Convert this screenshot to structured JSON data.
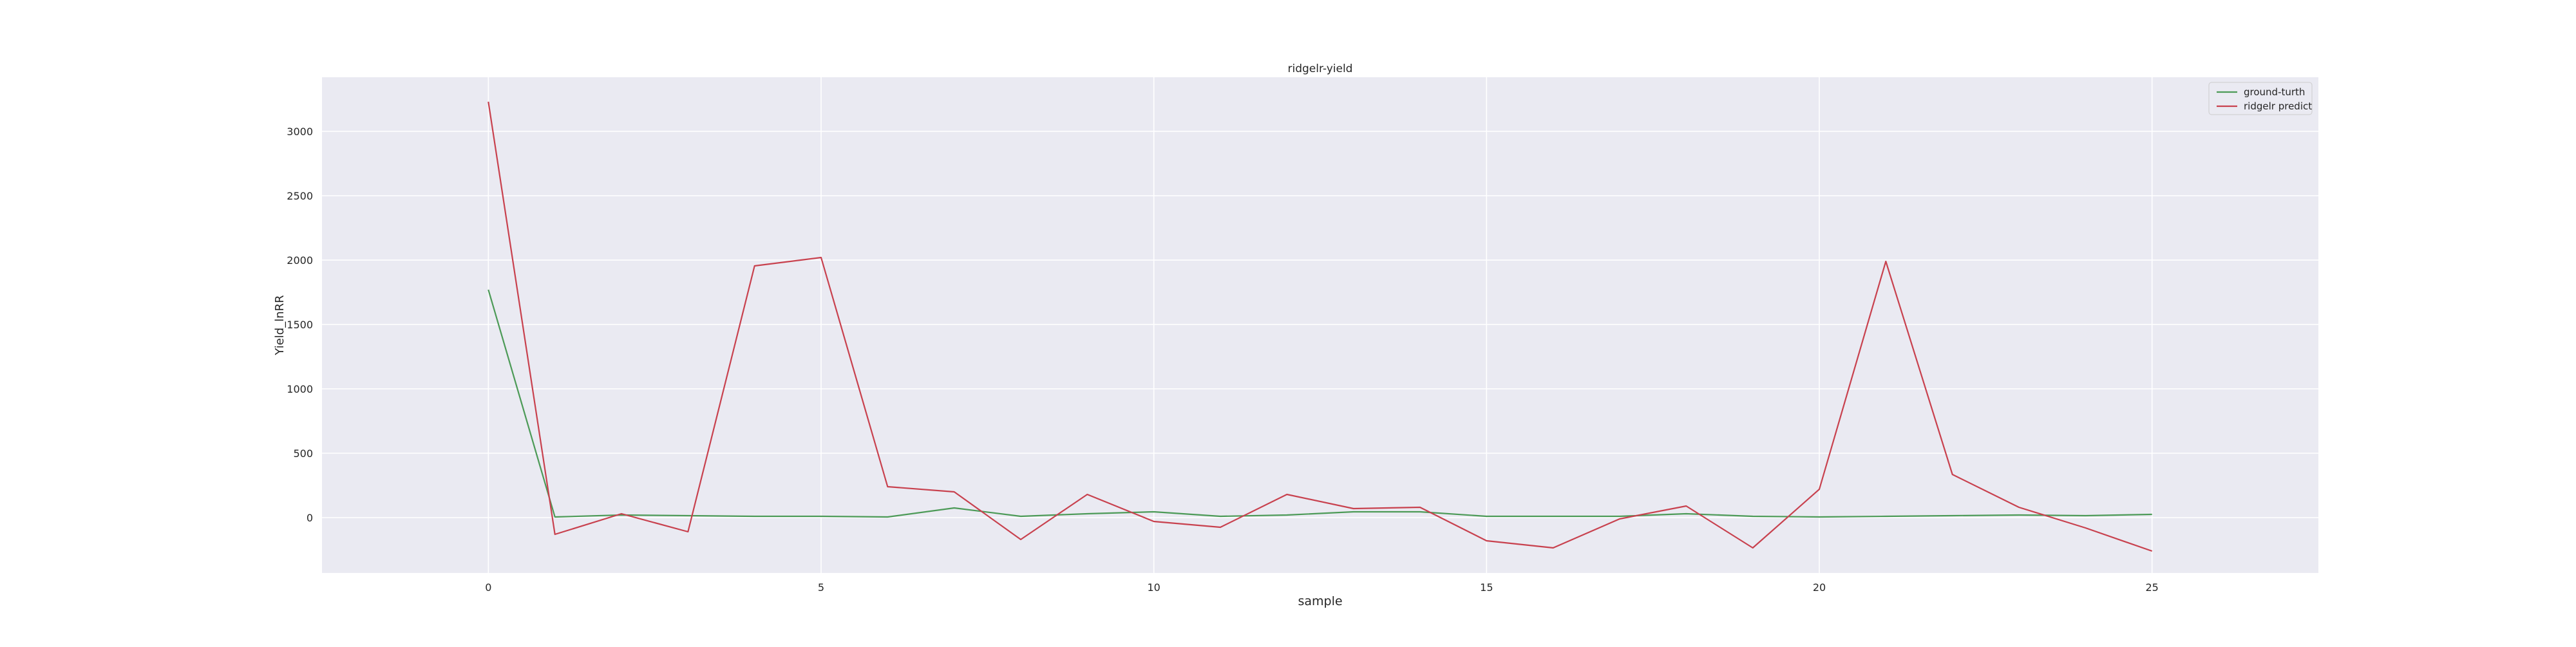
{
  "chart_data": {
    "type": "line",
    "title": "ridgelr-yield",
    "xlabel": "sample",
    "ylabel": "Yield_lnRR",
    "xlim": [
      -2.5,
      27.5
    ],
    "ylim": [
      -430,
      3420
    ],
    "grid": true,
    "legend_position": "top-right",
    "x_ticks": [
      0,
      5,
      10,
      15,
      20,
      25
    ],
    "y_ticks": [
      0,
      500,
      1000,
      1500,
      2000,
      2500,
      3000
    ],
    "x": [
      0,
      1,
      2,
      3,
      4,
      5,
      6,
      7,
      8,
      9,
      10,
      11,
      12,
      13,
      14,
      15,
      16,
      17,
      18,
      19,
      20,
      21,
      22,
      23,
      24,
      25
    ],
    "series": [
      {
        "name": "ground-turth",
        "color": "#4c9a57",
        "values": [
          1770,
          5,
          20,
          15,
          10,
          10,
          5,
          75,
          10,
          30,
          45,
          10,
          20,
          45,
          45,
          10,
          10,
          10,
          30,
          10,
          5,
          10,
          15,
          20,
          15,
          25
        ]
      },
      {
        "name": "ridgelr predict",
        "color": "#c8414e",
        "values": [
          3230,
          -130,
          30,
          -110,
          1955,
          2020,
          240,
          200,
          -170,
          180,
          -30,
          -75,
          180,
          70,
          80,
          -180,
          -235,
          -10,
          90,
          -235,
          220,
          1990,
          335,
          80,
          -80,
          -260
        ]
      }
    ]
  }
}
